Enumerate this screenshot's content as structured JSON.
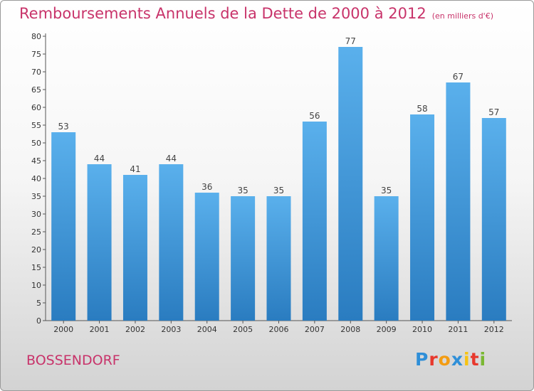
{
  "title": "Remboursements Annuels de la Dette de 2000 à 2012",
  "unit": "(en milliers d'€)",
  "town": "BOSSENDORF",
  "logo": {
    "letters": [
      "P",
      "r",
      "o",
      "x",
      "i",
      "t",
      "i"
    ],
    "colors": [
      "#2f8fd8",
      "#e8382c",
      "#f39c12",
      "#2f8fd8",
      "#f7c312",
      "#e8382c",
      "#7ab832"
    ]
  },
  "chart_data": {
    "type": "bar",
    "categories": [
      "2000",
      "2001",
      "2002",
      "2003",
      "2004",
      "2005",
      "2006",
      "2007",
      "2008",
      "2009",
      "2010",
      "2011",
      "2012"
    ],
    "values": [
      53,
      44,
      41,
      44,
      36,
      35,
      35,
      56,
      77,
      35,
      58,
      67,
      57
    ],
    "ylim": [
      0,
      80
    ],
    "ytick_step": 5,
    "grid": false,
    "bar_color": "#4a9fe0"
  }
}
